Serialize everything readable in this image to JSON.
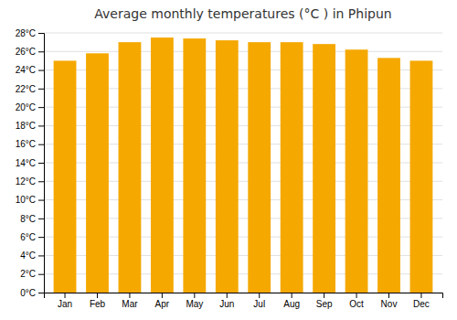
{
  "chart_data": {
    "type": "bar",
    "title": "Average monthly temperatures (°C ) in Phipun",
    "categories": [
      "Jan",
      "Feb",
      "Mar",
      "Apr",
      "May",
      "Jun",
      "Jul",
      "Aug",
      "Sep",
      "Oct",
      "Nov",
      "Dec"
    ],
    "values": [
      25.0,
      25.8,
      27.0,
      27.5,
      27.4,
      27.2,
      27.0,
      27.0,
      26.8,
      26.2,
      25.3,
      25.0
    ],
    "color": "#F5A800",
    "ylim": [
      0,
      28
    ],
    "yticks": [
      {
        "value": 0,
        "label": "0°C"
      },
      {
        "value": 2,
        "label": "2°C"
      },
      {
        "value": 4,
        "label": "4°C"
      },
      {
        "value": 6,
        "label": "6°C"
      },
      {
        "value": 8,
        "label": "8°C"
      },
      {
        "value": 10,
        "label": "10°C"
      },
      {
        "value": 12,
        "label": "12°C"
      },
      {
        "value": 14,
        "label": "14°C"
      },
      {
        "value": 16,
        "label": "16°C"
      },
      {
        "value": 18,
        "label": "18°C"
      },
      {
        "value": 20,
        "label": "20°C"
      },
      {
        "value": 22,
        "label": "22°C"
      },
      {
        "value": 24,
        "label": "24°C"
      },
      {
        "value": 26,
        "label": "26°C"
      },
      {
        "value": 28,
        "label": "28°C"
      }
    ],
    "grid": true
  }
}
